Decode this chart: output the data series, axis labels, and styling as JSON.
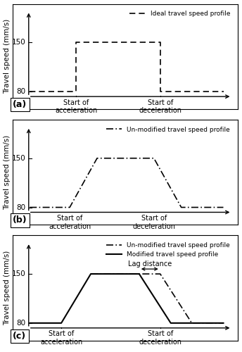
{
  "ylabel": "Travel speed (mm/s)",
  "speed_low": 80,
  "speed_high": 150,
  "label_a": "Ideal travel speed profile",
  "label_b": "Un-modified travel speed profile",
  "label_c1": "Un-modified travel speed profile",
  "label_c2": "Modified travel speed profile",
  "lag_label": "Lag distance",
  "panel_labels": [
    "(a)",
    "(b)",
    "(c)"
  ],
  "background_color": "#ffffff",
  "line_color": "#000000",
  "figsize": [
    3.44,
    5.0
  ],
  "dpi": 100
}
